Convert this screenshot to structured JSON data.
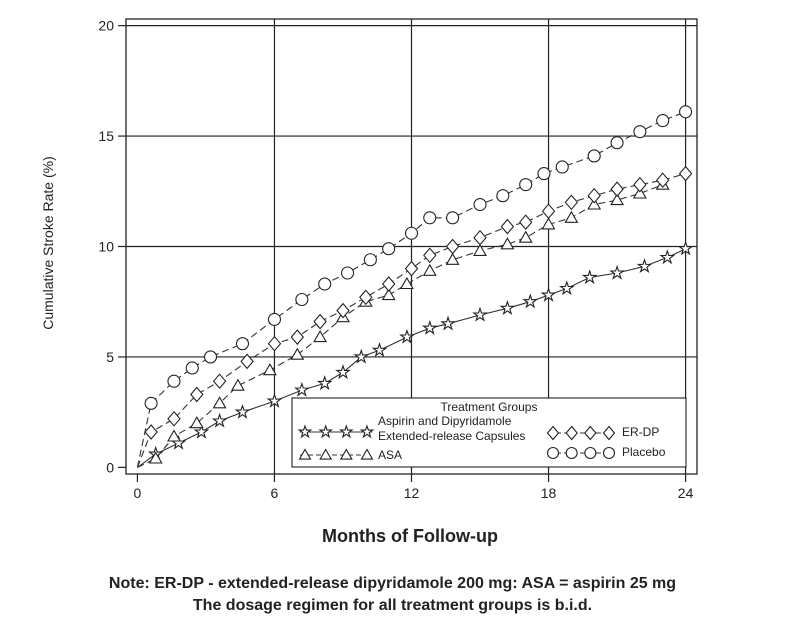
{
  "chart_data": {
    "type": "line",
    "xlabel": "Months of Follow-up",
    "ylabel": "Cumulative Stroke Rate (%)",
    "xlim": [
      -0.5,
      24.5
    ],
    "ylim": [
      -0.3,
      20.3
    ],
    "x_ticks": [
      0,
      6,
      12,
      18,
      24
    ],
    "y_ticks": [
      0,
      5,
      10,
      15,
      20
    ],
    "grid": true,
    "legend": {
      "title": "Treatment Groups",
      "placement": "bottom-right"
    },
    "series": [
      {
        "name": "Aspirin and Dipyridamole Extended-release Capsules",
        "legend_lines": [
          "Aspirin and Dipyridamole",
          "Extended-release Capsules"
        ],
        "marker": "star",
        "line_style": "solid",
        "points": [
          [
            0,
            0
          ],
          [
            0.8,
            0.6
          ],
          [
            1.8,
            1.1
          ],
          [
            2.8,
            1.6
          ],
          [
            3.6,
            2.1
          ],
          [
            4.6,
            2.5
          ],
          [
            6,
            3
          ],
          [
            7.2,
            3.5
          ],
          [
            8.2,
            3.8
          ],
          [
            9,
            4.3
          ],
          [
            9.8,
            5
          ],
          [
            10.6,
            5.3
          ],
          [
            11.8,
            5.9
          ],
          [
            12.8,
            6.3
          ],
          [
            13.6,
            6.5
          ],
          [
            15,
            6.9
          ],
          [
            16.2,
            7.2
          ],
          [
            17.2,
            7.5
          ],
          [
            18,
            7.8
          ],
          [
            18.8,
            8.1
          ],
          [
            19.8,
            8.6
          ],
          [
            21,
            8.8
          ],
          [
            22.2,
            9.1
          ],
          [
            23.2,
            9.5
          ],
          [
            24,
            9.9
          ]
        ]
      },
      {
        "name": "ASA",
        "legend_lines": [
          "ASA"
        ],
        "marker": "triangle",
        "line_style": "dashed",
        "points": [
          [
            0,
            0
          ],
          [
            0.8,
            0.4
          ],
          [
            1.6,
            1.4
          ],
          [
            2.6,
            2
          ],
          [
            3.6,
            2.9
          ],
          [
            4.4,
            3.7
          ],
          [
            5.8,
            4.4
          ],
          [
            7,
            5.1
          ],
          [
            8,
            5.9
          ],
          [
            9,
            6.8
          ],
          [
            10,
            7.5
          ],
          [
            11,
            7.8
          ],
          [
            11.8,
            8.3
          ],
          [
            12.8,
            8.9
          ],
          [
            13.8,
            9.4
          ],
          [
            15,
            9.8
          ],
          [
            16.2,
            10.1
          ],
          [
            17,
            10.4
          ],
          [
            18,
            11
          ],
          [
            19,
            11.3
          ],
          [
            20,
            11.9
          ],
          [
            21,
            12.1
          ],
          [
            22,
            12.4
          ],
          [
            23,
            12.8
          ]
        ]
      },
      {
        "name": "ER-DP",
        "legend_lines": [
          "ER-DP"
        ],
        "marker": "diamond",
        "line_style": "dashed",
        "points": [
          [
            0,
            0
          ],
          [
            0.6,
            1.6
          ],
          [
            1.6,
            2.2
          ],
          [
            2.6,
            3.3
          ],
          [
            3.6,
            3.9
          ],
          [
            4.8,
            4.8
          ],
          [
            6,
            5.6
          ],
          [
            7,
            5.9
          ],
          [
            8,
            6.6
          ],
          [
            9,
            7.1
          ],
          [
            10,
            7.7
          ],
          [
            11,
            8.3
          ],
          [
            12,
            9
          ],
          [
            12.8,
            9.6
          ],
          [
            13.8,
            10
          ],
          [
            15,
            10.4
          ],
          [
            16.2,
            10.9
          ],
          [
            17,
            11.1
          ],
          [
            18,
            11.6
          ],
          [
            19,
            12
          ],
          [
            20,
            12.3
          ],
          [
            21,
            12.6
          ],
          [
            22,
            12.8
          ],
          [
            23,
            13
          ],
          [
            24,
            13.3
          ]
        ]
      },
      {
        "name": "Placebo",
        "legend_lines": [
          "Placebo"
        ],
        "marker": "circle",
        "line_style": "dashed",
        "points": [
          [
            0,
            0
          ],
          [
            0.6,
            2.9
          ],
          [
            1.6,
            3.9
          ],
          [
            2.4,
            4.5
          ],
          [
            3.2,
            5
          ],
          [
            4.6,
            5.6
          ],
          [
            6,
            6.7
          ],
          [
            7.2,
            7.6
          ],
          [
            8.2,
            8.3
          ],
          [
            9.2,
            8.8
          ],
          [
            10.2,
            9.4
          ],
          [
            11,
            9.9
          ],
          [
            12,
            10.6
          ],
          [
            12.8,
            11.3
          ],
          [
            13.8,
            11.3
          ],
          [
            15,
            11.9
          ],
          [
            16,
            12.3
          ],
          [
            17,
            12.8
          ],
          [
            17.8,
            13.3
          ],
          [
            18.6,
            13.6
          ],
          [
            20,
            14.1
          ],
          [
            21,
            14.7
          ],
          [
            22,
            15.2
          ],
          [
            23,
            15.7
          ],
          [
            24,
            16.1
          ]
        ]
      }
    ]
  },
  "notes": {
    "line1": "Note: ER-DP - extended-release dipyridamole 200 mg: ASA = aspirin 25 mg",
    "line2": "The dosage regimen for all treatment groups is b.i.d."
  }
}
